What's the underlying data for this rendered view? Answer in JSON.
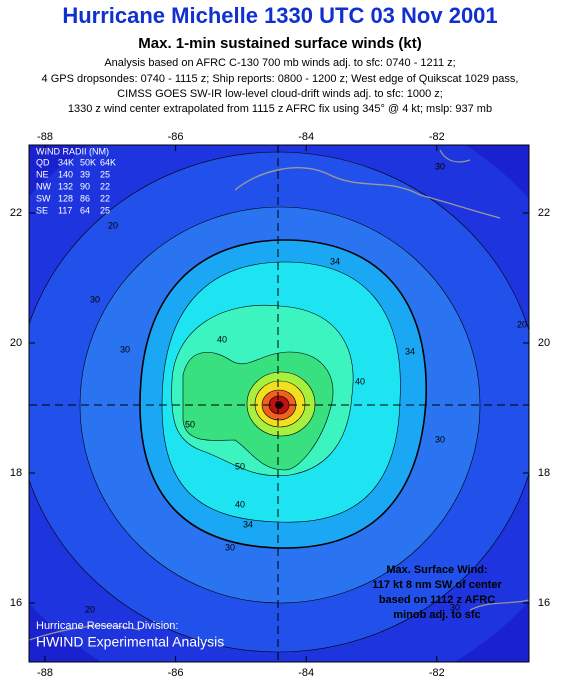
{
  "header": {
    "title": "Hurricane Michelle 1330 UTC 03 Nov 2001",
    "subtitle": "Max. 1-min sustained surface winds (kt)",
    "notes": [
      "Analysis based on AFRC C-130 700 mb winds adj. to sfc: 0740 - 1211 z;",
      "4 GPS dropsondes: 0740 - 1115 z; Ship reports: 0800 - 1200 z; West edge of Quikscat 1029 pass,",
      "CIMSS GOES SW-IR low-level cloud-drift winds adj. to sfc: 1000 z;",
      "1330 z wind center extrapolated from 1115 z AFRC fix using 345° @ 4 kt; mslp: 937 mb"
    ]
  },
  "map": {
    "lon_ticks": [
      -88,
      -86,
      -84,
      -82
    ],
    "lat_ticks": [
      22,
      20,
      18,
      16
    ],
    "wind_radii": {
      "title": "WIND RADII (NM)",
      "columns": [
        "QD",
        "34K",
        "50K",
        "64K"
      ],
      "rows": [
        [
          "NE",
          "140",
          "39",
          "25"
        ],
        [
          "NW",
          "132",
          "90",
          "22"
        ],
        [
          "SW",
          "128",
          "86",
          "22"
        ],
        [
          "SE",
          "117",
          "64",
          "25"
        ]
      ]
    },
    "contour_labels": [
      30,
      20,
      30,
      20,
      30,
      34,
      30,
      34,
      40,
      40,
      50,
      50,
      40,
      34,
      30,
      30,
      20
    ],
    "credit": [
      "Hurricane Research Division:",
      "HWIND Experimental Analysis"
    ],
    "max_wind": [
      "Max. Surface Wind:",
      "117 kt 8 nm SW of center",
      "based on  1112 z AFRC",
      "minob adj. to sfc"
    ]
  }
}
